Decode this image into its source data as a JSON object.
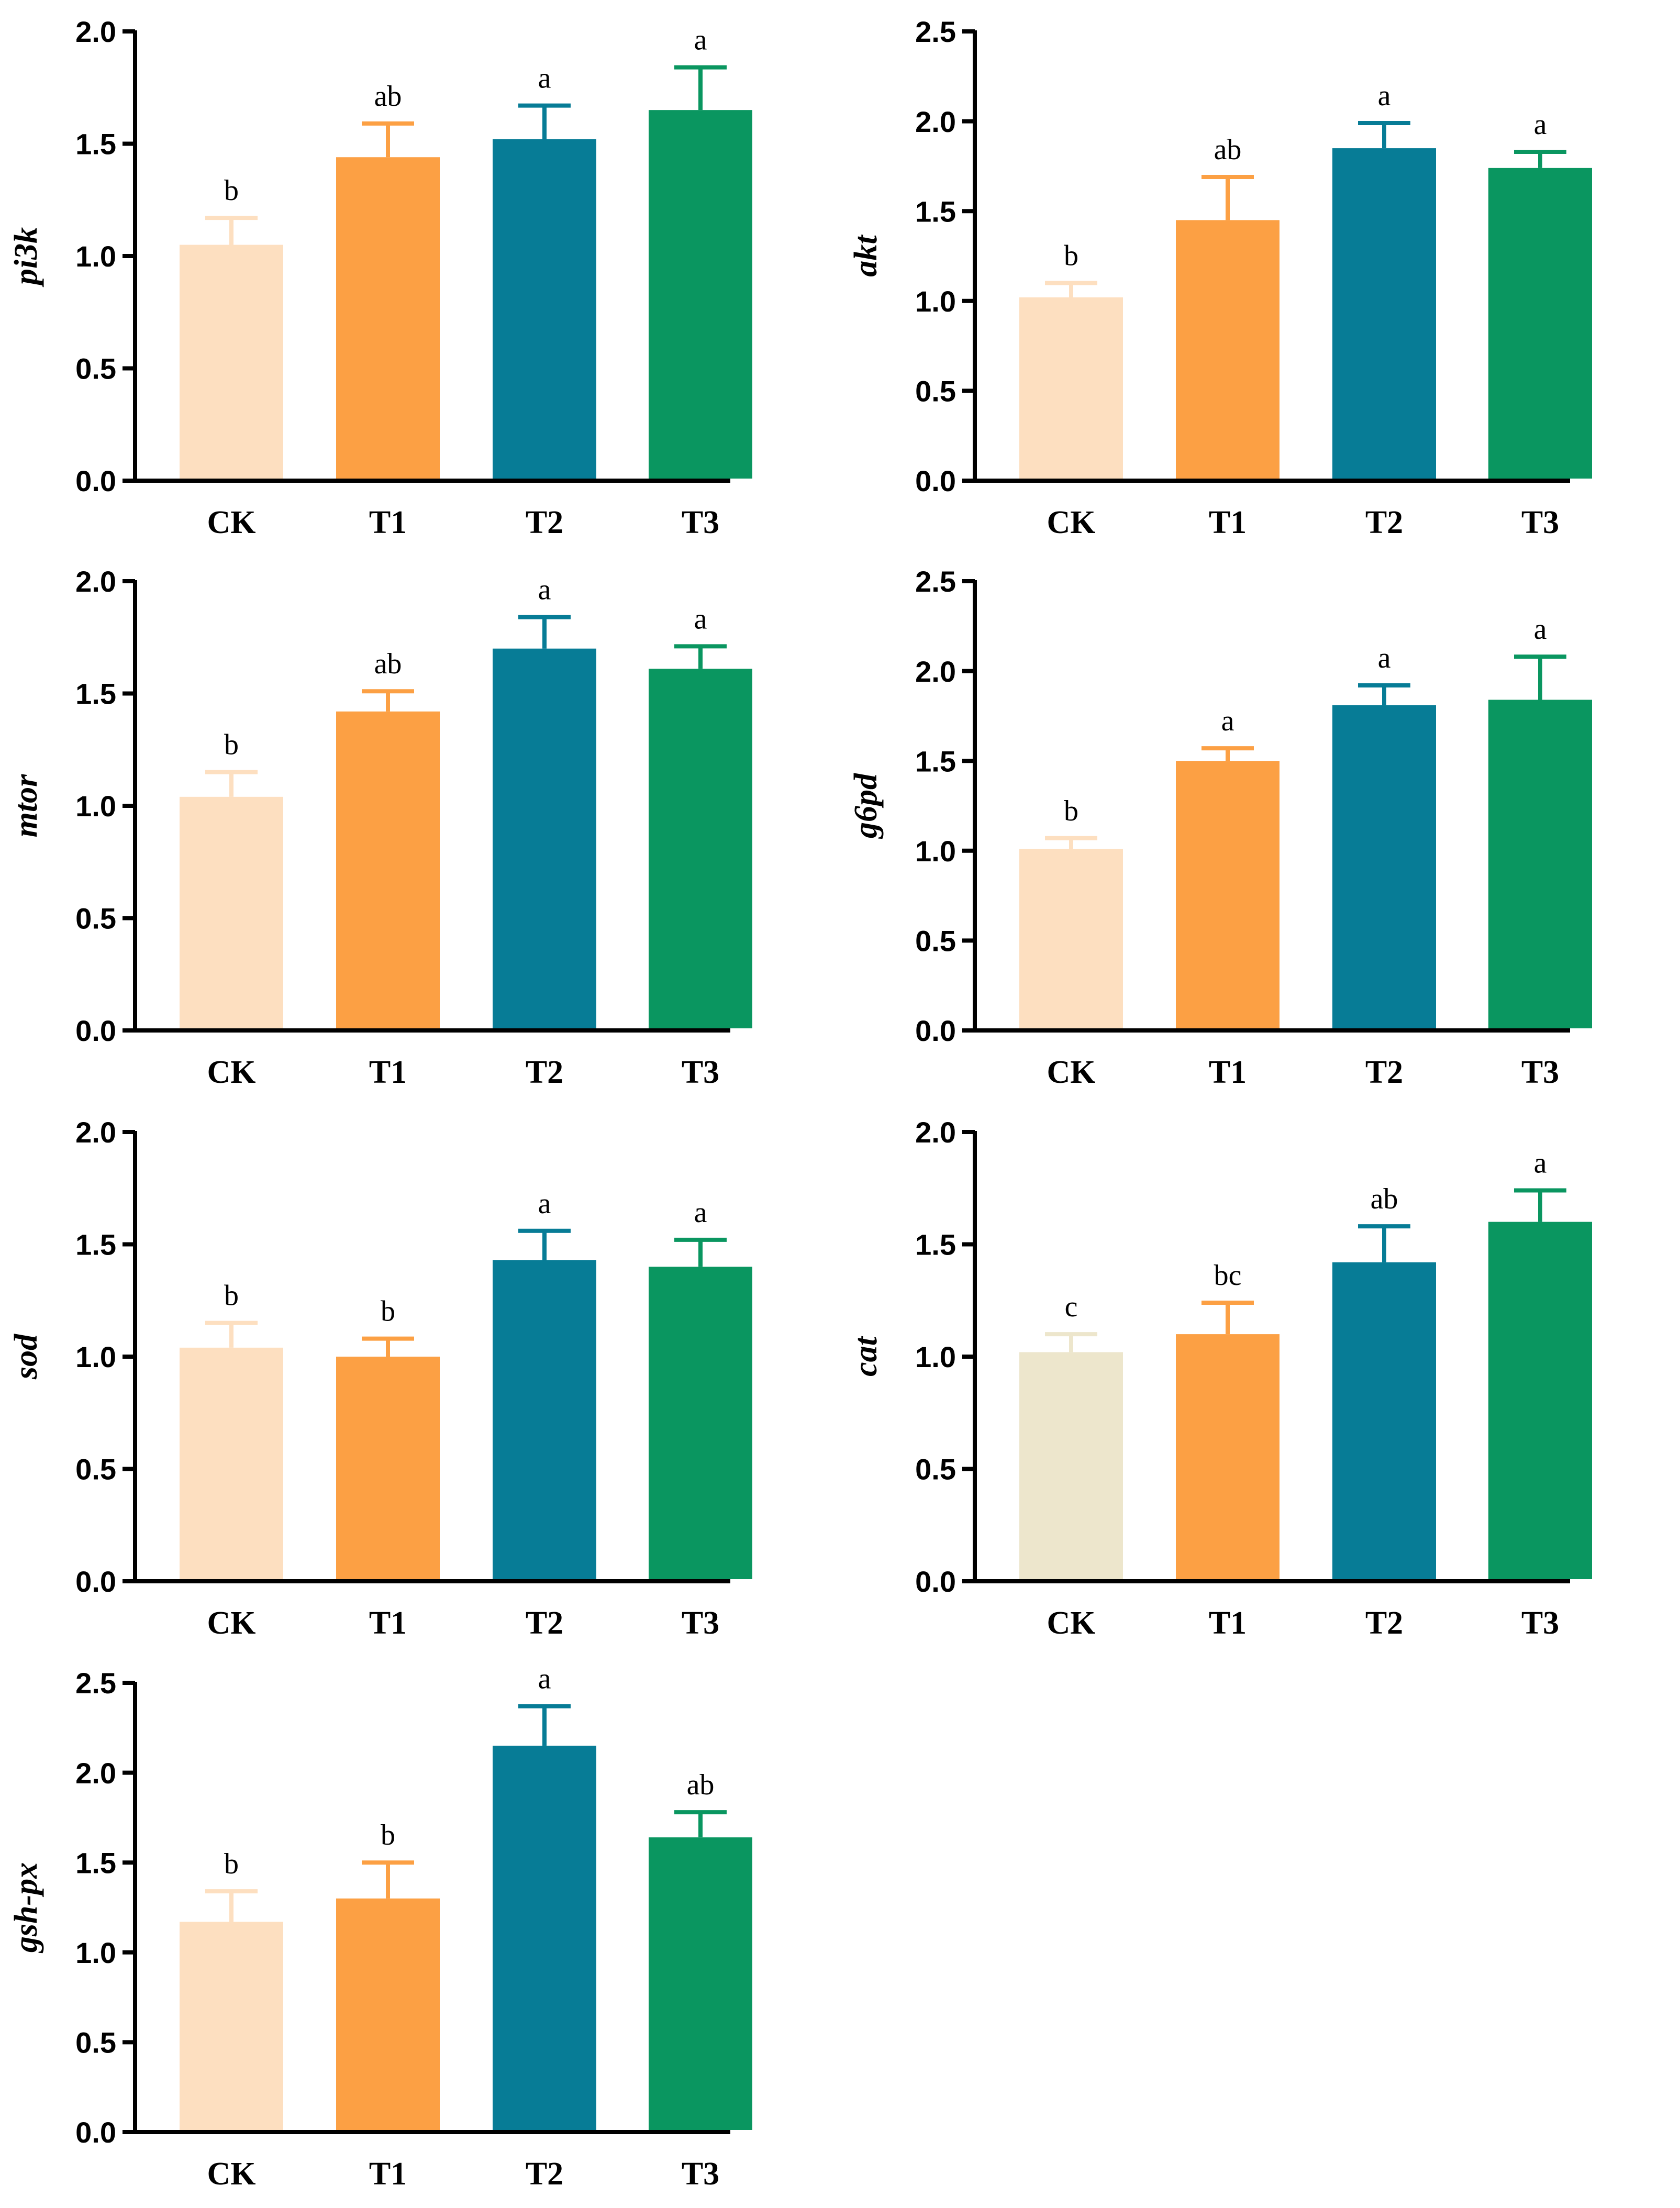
{
  "colors": {
    "CK": "#FDDFC0",
    "CK_cat": "#EDE6CC",
    "T1": "#FCA044",
    "T2": "#077C96",
    "T3": "#0A9660",
    "axis": "#000000"
  },
  "chart_data": [
    {
      "type": "bar",
      "ylabel": "pi3k",
      "categories": [
        "CK",
        "T1",
        "T2",
        "T3"
      ],
      "values": [
        1.05,
        1.44,
        1.52,
        1.65
      ],
      "errors": [
        0.12,
        0.15,
        0.15,
        0.19
      ],
      "letters": [
        "b",
        "ab",
        "a",
        "a"
      ],
      "ylim": [
        0,
        2.0
      ],
      "yticks": [
        "0.0",
        "0.5",
        "1.0",
        "1.5",
        "2.0"
      ]
    },
    {
      "type": "bar",
      "ylabel": "akt",
      "categories": [
        "CK",
        "T1",
        "T2",
        "T3"
      ],
      "values": [
        1.02,
        1.45,
        1.85,
        1.74
      ],
      "errors": [
        0.08,
        0.24,
        0.14,
        0.09
      ],
      "letters": [
        "b",
        "ab",
        "a",
        "a"
      ],
      "ylim": [
        0,
        2.5
      ],
      "yticks": [
        "0.0",
        "0.5",
        "1.0",
        "1.5",
        "2.0",
        "2.5"
      ]
    },
    {
      "type": "bar",
      "ylabel": "mtor",
      "categories": [
        "CK",
        "T1",
        "T2",
        "T3"
      ],
      "values": [
        1.04,
        1.42,
        1.7,
        1.61
      ],
      "errors": [
        0.11,
        0.09,
        0.14,
        0.1
      ],
      "letters": [
        "b",
        "ab",
        "a",
        "a"
      ],
      "ylim": [
        0,
        2.0
      ],
      "yticks": [
        "0.0",
        "0.5",
        "1.0",
        "1.5",
        "2.0"
      ]
    },
    {
      "type": "bar",
      "ylabel": "g6pd",
      "categories": [
        "CK",
        "T1",
        "T2",
        "T3"
      ],
      "values": [
        1.01,
        1.5,
        1.81,
        1.84
      ],
      "errors": [
        0.06,
        0.07,
        0.11,
        0.24
      ],
      "letters": [
        "b",
        "a",
        "a",
        "a"
      ],
      "ylim": [
        0,
        2.5
      ],
      "yticks": [
        "0.0",
        "0.5",
        "1.0",
        "1.5",
        "2.0",
        "2.5"
      ]
    },
    {
      "type": "bar",
      "ylabel": "sod",
      "categories": [
        "CK",
        "T1",
        "T2",
        "T3"
      ],
      "values": [
        1.04,
        1.0,
        1.43,
        1.4
      ],
      "errors": [
        0.11,
        0.08,
        0.13,
        0.12
      ],
      "letters": [
        "b",
        "b",
        "a",
        "a"
      ],
      "ylim": [
        0,
        2.0
      ],
      "yticks": [
        "0.0",
        "0.5",
        "1.0",
        "1.5",
        "2.0"
      ]
    },
    {
      "type": "bar",
      "ylabel": "cat",
      "categories": [
        "CK",
        "T1",
        "T2",
        "T3"
      ],
      "values": [
        1.02,
        1.1,
        1.42,
        1.6
      ],
      "errors": [
        0.08,
        0.14,
        0.16,
        0.14
      ],
      "letters": [
        "c",
        "bc",
        "ab",
        "a"
      ],
      "ylim": [
        0,
        2.0
      ],
      "yticks": [
        "0.0",
        "0.5",
        "1.0",
        "1.5",
        "2.0"
      ]
    },
    {
      "type": "bar",
      "ylabel": "gsh-px",
      "categories": [
        "CK",
        "T1",
        "T2",
        "T3"
      ],
      "values": [
        1.17,
        1.3,
        2.15,
        1.64
      ],
      "errors": [
        0.17,
        0.2,
        0.22,
        0.14
      ],
      "letters": [
        "b",
        "b",
        "a",
        "ab"
      ],
      "ylim": [
        0,
        2.5
      ],
      "yticks": [
        "0.0",
        "0.5",
        "1.0",
        "1.5",
        "2.0",
        "2.5"
      ]
    }
  ]
}
